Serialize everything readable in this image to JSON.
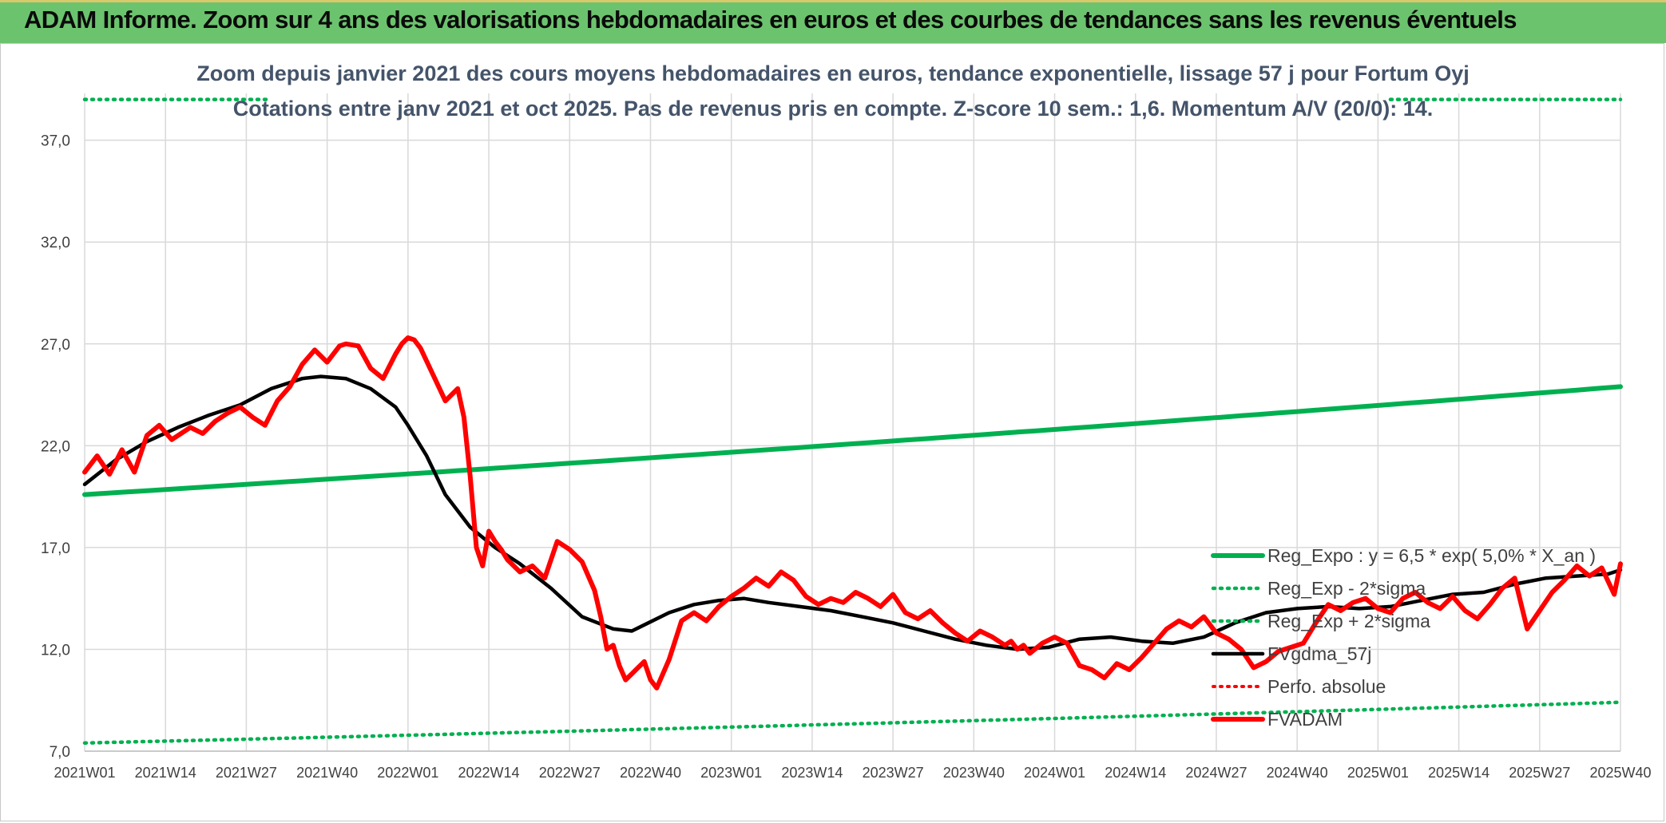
{
  "header": {
    "title": "ADAM Informe. Zoom sur 4 ans des valorisations hebdomadaires en euros et des courbes de tendances sans les revenus éventuels"
  },
  "colors": {
    "banner": "#6cc36e",
    "reg_expo": "#00b050",
    "gdma": "#000000",
    "adam": "#ff0000",
    "perfo": "#ff0000",
    "grid": "#d9d9d9"
  },
  "chart_data": {
    "type": "line",
    "title_lines": [
      "Zoom depuis janvier 2021 des cours moyens hebdomadaires en euros, tendance exponentielle, lissage 57 j pour Fortum Oyj",
      "Cotations entre janv 2021 et oct 2025. Pas de revenus pris en compte. Z-score 10 sem.: 1,6. Momentum A/V (20/0): 14."
    ],
    "y_ticks": [
      "7,0",
      "12,0",
      "17,0",
      "22,0",
      "27,0",
      "32,0",
      "37,0"
    ],
    "ylim": [
      7,
      39.3
    ],
    "x_ticks": [
      "2021W01",
      "2021W14",
      "2021W27",
      "2021W40",
      "2022W01",
      "2022W14",
      "2022W27",
      "2022W40",
      "2023W01",
      "2023W14",
      "2023W27",
      "2023W40",
      "2024W01",
      "2024W14",
      "2024W27",
      "2024W40",
      "2025W01",
      "2025W14",
      "2025W27",
      "2025W40"
    ],
    "grid": true,
    "legend_position": "bottom-right",
    "series": [
      {
        "name": "Reg_Expo : y = 6,5 * exp( 5,0% *  X_an )",
        "style": "solid-green",
        "x": [
          0,
          247
        ],
        "values": [
          19.6,
          24.9
        ]
      },
      {
        "name": "Reg_Exp - 2*sigma",
        "style": "dotted-green",
        "x": [
          0,
          247
        ],
        "values": [
          7.4,
          9.4
        ]
      },
      {
        "name": "Reg_Exp + 2*sigma",
        "style": "dotted-green",
        "x": [
          0,
          30,
          210,
          247
        ],
        "values": [
          39.0,
          39.0,
          39.0,
          39.0
        ]
      },
      {
        "name": "FVgdma_57j",
        "style": "solid-black",
        "x": [
          0,
          5,
          10,
          15,
          20,
          25,
          30,
          35,
          38,
          42,
          46,
          50,
          52,
          55,
          58,
          62,
          66,
          70,
          75,
          80,
          85,
          88,
          90,
          94,
          98,
          102,
          106,
          110,
          115,
          120,
          125,
          130,
          135,
          140,
          145,
          150,
          155,
          160,
          165,
          170,
          175,
          180,
          185,
          190,
          195,
          200,
          205,
          210,
          215,
          220,
          225,
          230,
          235,
          240,
          245,
          247
        ],
        "values": [
          20.1,
          21.3,
          22.2,
          22.9,
          23.5,
          24.0,
          24.8,
          25.3,
          25.4,
          25.3,
          24.8,
          23.9,
          23.0,
          21.5,
          19.6,
          18.0,
          17.0,
          16.2,
          15.0,
          13.6,
          13.0,
          12.9,
          13.2,
          13.8,
          14.2,
          14.4,
          14.5,
          14.3,
          14.1,
          13.9,
          13.6,
          13.3,
          12.9,
          12.5,
          12.2,
          12.0,
          12.1,
          12.5,
          12.6,
          12.4,
          12.3,
          12.6,
          13.3,
          13.8,
          14.0,
          14.1,
          14.0,
          14.1,
          14.4,
          14.7,
          14.8,
          15.2,
          15.5,
          15.6,
          15.7,
          15.9
        ]
      },
      {
        "name": "Perfo. absolue",
        "style": "dotted-red",
        "x": [],
        "values": []
      },
      {
        "name": "FVADAM",
        "style": "solid-red",
        "x": [
          0,
          2,
          4,
          6,
          8,
          10,
          12,
          14,
          15,
          17,
          19,
          21,
          23,
          25,
          27,
          29,
          31,
          33,
          35,
          37,
          39,
          41,
          42,
          44,
          46,
          48,
          50,
          51,
          52,
          53,
          54,
          56,
          58,
          60,
          61,
          62,
          63,
          64,
          65,
          66,
          67,
          68,
          70,
          72,
          74,
          76,
          78,
          80,
          82,
          83,
          84,
          85,
          86,
          87,
          88,
          89,
          90,
          91,
          92,
          94,
          96,
          98,
          100,
          102,
          104,
          106,
          108,
          110,
          112,
          114,
          116,
          118,
          120,
          122,
          124,
          126,
          128,
          130,
          132,
          134,
          136,
          138,
          140,
          142,
          144,
          146,
          148,
          149,
          150,
          151,
          152,
          154,
          156,
          158,
          160,
          162,
          164,
          166,
          168,
          170,
          172,
          174,
          176,
          178,
          180,
          182,
          184,
          186,
          188,
          190,
          192,
          194,
          196,
          198,
          200,
          202,
          204,
          206,
          208,
          210,
          212,
          214,
          216,
          218,
          220,
          222,
          224,
          226,
          228,
          230,
          232,
          234,
          236,
          238,
          240,
          242,
          244,
          246,
          247
        ],
        "values": [
          20.7,
          21.5,
          20.6,
          21.8,
          20.7,
          22.5,
          23.0,
          22.3,
          22.5,
          22.9,
          22.6,
          23.2,
          23.6,
          23.9,
          23.4,
          23.0,
          24.2,
          24.9,
          26.0,
          26.7,
          26.1,
          26.9,
          27.0,
          26.9,
          25.8,
          25.3,
          26.5,
          27.0,
          27.3,
          27.2,
          26.8,
          25.5,
          24.2,
          24.8,
          23.4,
          20.5,
          17.0,
          16.1,
          17.8,
          17.3,
          16.9,
          16.4,
          15.8,
          16.1,
          15.5,
          17.3,
          16.9,
          16.3,
          14.9,
          13.6,
          12.0,
          12.2,
          11.2,
          10.5,
          10.8,
          11.1,
          11.4,
          10.5,
          10.1,
          11.5,
          13.4,
          13.8,
          13.4,
          14.1,
          14.6,
          15.0,
          15.5,
          15.1,
          15.8,
          15.4,
          14.6,
          14.2,
          14.5,
          14.3,
          14.8,
          14.5,
          14.1,
          14.7,
          13.8,
          13.5,
          13.9,
          13.3,
          12.8,
          12.4,
          12.9,
          12.6,
          12.2,
          12.4,
          12.0,
          12.2,
          11.8,
          12.3,
          12.6,
          12.3,
          11.2,
          11.0,
          10.6,
          11.3,
          11.0,
          11.6,
          12.3,
          13.0,
          13.4,
          13.1,
          13.6,
          12.8,
          12.5,
          12.0,
          11.1,
          11.4,
          11.9,
          12.1,
          12.3,
          13.3,
          14.2,
          13.9,
          14.3,
          14.5,
          14.0,
          13.8,
          14.5,
          14.8,
          14.3,
          14.0,
          14.6,
          13.9,
          13.5,
          14.2,
          15.0,
          15.5,
          13.0,
          13.9,
          14.8,
          15.4,
          16.1,
          15.6,
          16.0,
          14.7,
          16.2
        ]
      }
    ]
  }
}
